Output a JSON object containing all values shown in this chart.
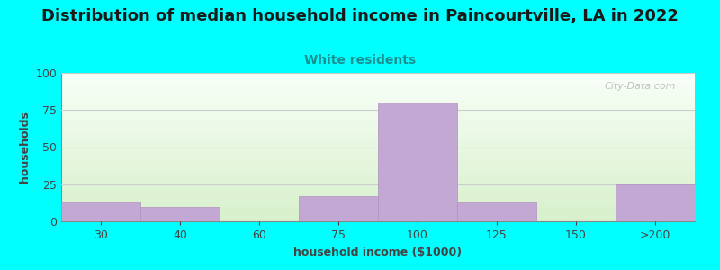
{
  "title": "Distribution of median household income in Paincourtville, LA in 2022",
  "subtitle": "White residents",
  "xlabel": "household income ($1000)",
  "ylabel": "households",
  "background_color": "#00FFFF",
  "plot_bg_gradient_top": "#f8fff8",
  "plot_bg_gradient_bottom": "#d8f0cc",
  "bar_color": "#c4a8d4",
  "bar_edge_color": "#b090c0",
  "watermark": "City-Data.com",
  "categories": [
    "30",
    "40",
    "60",
    "75",
    "100",
    "125",
    "150",
    ">200"
  ],
  "values": [
    13,
    10,
    0,
    17,
    80,
    13,
    0,
    25
  ],
  "ylim": [
    0,
    100
  ],
  "yticks": [
    0,
    25,
    50,
    75,
    100
  ],
  "title_fontsize": 13,
  "subtitle_fontsize": 10,
  "label_fontsize": 9,
  "tick_fontsize": 9,
  "subtitle_color": "#1a9090",
  "title_color": "#1a1a1a",
  "tick_color": "#444444",
  "axis_color": "#888888",
  "grid_color": "#cccccc",
  "watermark_color": "#b8b8b8"
}
